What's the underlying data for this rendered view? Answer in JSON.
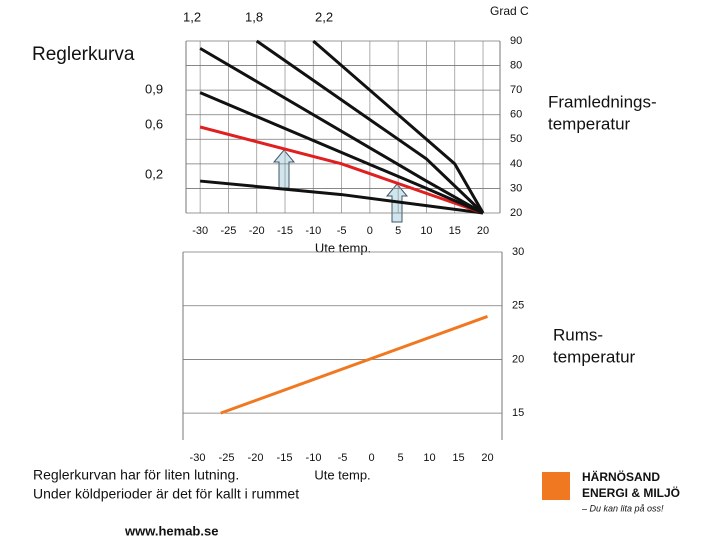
{
  "slide": {
    "title": "Reglerkurva",
    "right_labels": [
      [
        "Framlednings-",
        "temperatur"
      ],
      [
        "Rums-",
        "temperatur"
      ]
    ],
    "note": [
      "Reglerkurvan har för liten lutning.",
      "Under köldperioder är det för kallt i rummet"
    ],
    "logo": [
      "HÄRNÖSAND",
      "ENERGI & MILJÖ",
      "– Du kan lita på oss!"
    ],
    "footer": "www.hemab.se"
  },
  "chart_data": [
    {
      "type": "line",
      "ylabel": "Grad C",
      "xlabel": "Ute temp.",
      "xlim": [
        -32.5,
        23
      ],
      "xticks": [
        -30,
        -25,
        -20,
        -15,
        -10,
        -5,
        0,
        5,
        10,
        15,
        20
      ],
      "ylim": [
        20,
        90
      ],
      "yticks": [
        20,
        30,
        40,
        50,
        60,
        70,
        80,
        90
      ],
      "grid": "both",
      "series": [
        {
          "name": "0,2",
          "color": "#111111",
          "x": [
            -30,
            -5,
            20
          ],
          "values": [
            33,
            27.5,
            20
          ]
        },
        {
          "name": "0,6",
          "color": "#e02020",
          "x": [
            -30,
            -5,
            20
          ],
          "values": [
            55,
            40,
            20
          ]
        },
        {
          "name": "0,9",
          "color": "#111111",
          "x": [
            -30,
            10,
            20
          ],
          "values": [
            69,
            30,
            20
          ]
        },
        {
          "name": "1,2",
          "color": "#111111",
          "x": [
            -30,
            10,
            20
          ],
          "values": [
            87,
            33,
            20
          ]
        },
        {
          "name": "1,8",
          "color": "#111111",
          "x": [
            -20,
            10,
            20
          ],
          "values": [
            90,
            42,
            20
          ]
        },
        {
          "name": "2,2",
          "color": "#111111",
          "x": [
            -10,
            15,
            20
          ],
          "values": [
            90,
            40,
            20
          ]
        }
      ]
    },
    {
      "type": "line",
      "xlabel": "Ute temp.",
      "xlim": [
        -32.5,
        22.5
      ],
      "xticks": [
        -30,
        -25,
        -20,
        -15,
        -10,
        -5,
        0,
        5,
        10,
        15,
        20
      ],
      "ylim": [
        12.5,
        30
      ],
      "yticks": [
        15,
        20,
        25,
        30
      ],
      "grid": "y",
      "series": [
        {
          "color": "#f07820",
          "x": [
            -26,
            20
          ],
          "values": [
            15,
            24
          ]
        }
      ]
    }
  ]
}
